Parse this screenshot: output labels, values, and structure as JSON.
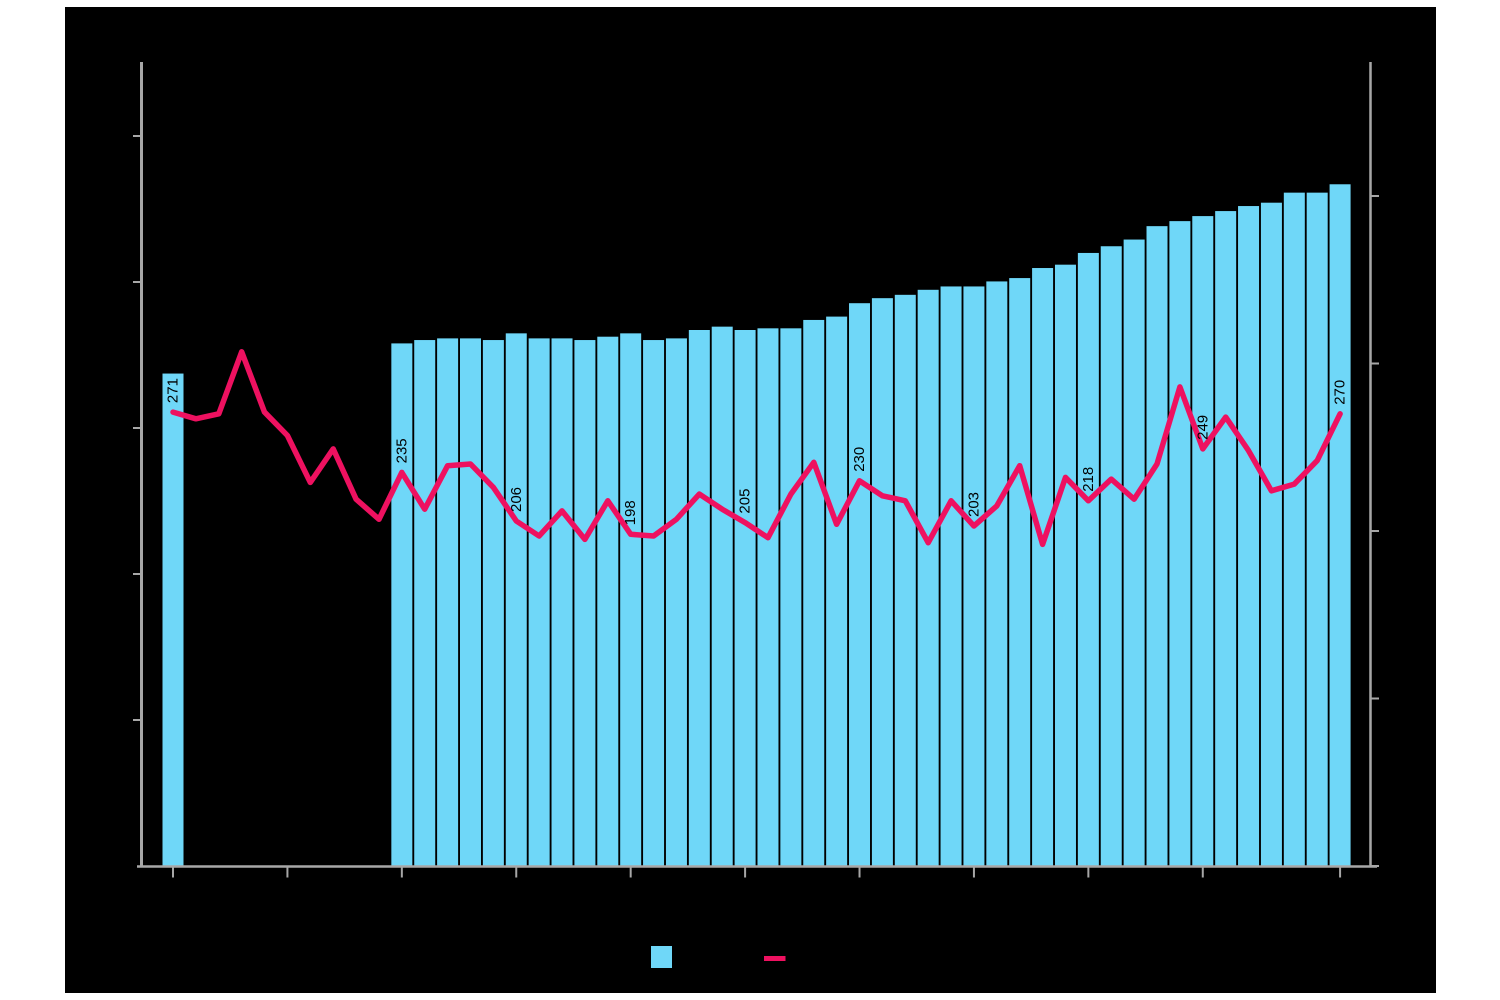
{
  "title": "",
  "colors": {
    "page_background": "#ffffff",
    "plot_background": "#000000",
    "bar": "#6fd7f8",
    "line": "#ee1160",
    "axis": "#a7a7a7",
    "data_label_text": "#000000"
  },
  "chart_data": {
    "type": "bar+line",
    "n_points": 52,
    "axis_text_visible": false,
    "series": [
      {
        "name": "bars",
        "type": "bar",
        "axis": "left (tick marks visible, labels not visible)",
        "values": [
          294,
          null,
          null,
          null,
          null,
          null,
          null,
          null,
          null,
          null,
          312,
          314,
          315,
          315,
          314,
          318,
          315,
          315,
          314,
          316,
          318,
          314,
          315,
          320,
          322,
          320,
          321,
          321,
          326,
          328,
          336,
          339,
          341,
          344,
          346,
          346,
          349,
          351,
          357,
          359,
          366,
          370,
          374,
          382,
          385,
          388,
          391,
          394,
          396,
          402,
          402,
          407
        ]
      },
      {
        "name": "line",
        "type": "line",
        "axis": "right",
        "values": [
          271,
          267,
          270,
          307,
          271,
          257,
          229,
          249,
          219,
          207,
          235,
          213,
          239,
          240,
          226,
          206,
          197,
          212,
          195,
          218,
          198,
          197,
          207,
          222,
          213,
          205,
          196,
          222,
          241,
          204,
          230,
          221,
          218,
          193,
          218,
          203,
          215,
          239,
          192,
          232,
          218,
          231,
          219,
          240,
          286,
          249,
          268,
          248,
          224,
          228,
          242,
          270
        ]
      }
    ],
    "data_labels": [
      {
        "pos": 0,
        "text": "271"
      },
      {
        "pos": 10,
        "text": "235"
      },
      {
        "pos": 15,
        "text": "206"
      },
      {
        "pos": 20,
        "text": "198"
      },
      {
        "pos": 25,
        "text": "205"
      },
      {
        "pos": 30,
        "text": "230"
      },
      {
        "pos": 35,
        "text": "203"
      },
      {
        "pos": 40,
        "text": "218"
      },
      {
        "pos": 45,
        "text": "249"
      },
      {
        "pos": 51,
        "text": "270"
      }
    ],
    "x_tick_positions": [
      0,
      5,
      10,
      15,
      20,
      25,
      30,
      35,
      40,
      45,
      51
    ],
    "right_axis": {
      "min": 0,
      "max": 480,
      "tick_values": [
        0,
        100,
        200,
        300,
        400
      ],
      "labels_visible": false
    },
    "left_axis": {
      "tick_count": 5,
      "labels_visible": false
    },
    "grid": "off",
    "legend": {
      "position": "bottom-center",
      "items": [
        {
          "swatch": "bar-square",
          "label": ""
        },
        {
          "swatch": "line-dash",
          "label": ""
        }
      ]
    }
  }
}
